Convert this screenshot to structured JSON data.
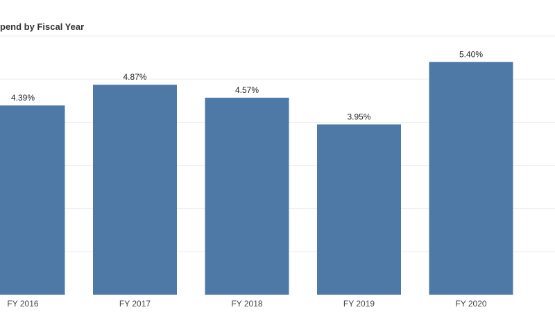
{
  "chart_data": {
    "type": "bar",
    "title": "pend by Fiscal Year",
    "categories": [
      "FY 2016",
      "FY 2017",
      "FY 2018",
      "FY 2019",
      "FY 2020"
    ],
    "values": [
      4.39,
      4.87,
      4.57,
      3.95,
      5.4
    ],
    "data_labels": [
      "4.39%",
      "4.87%",
      "4.57%",
      "3.95%",
      "5.40%"
    ],
    "ylim": [
      0,
      6
    ],
    "grid": true,
    "bar_color": "#4e79a7"
  }
}
